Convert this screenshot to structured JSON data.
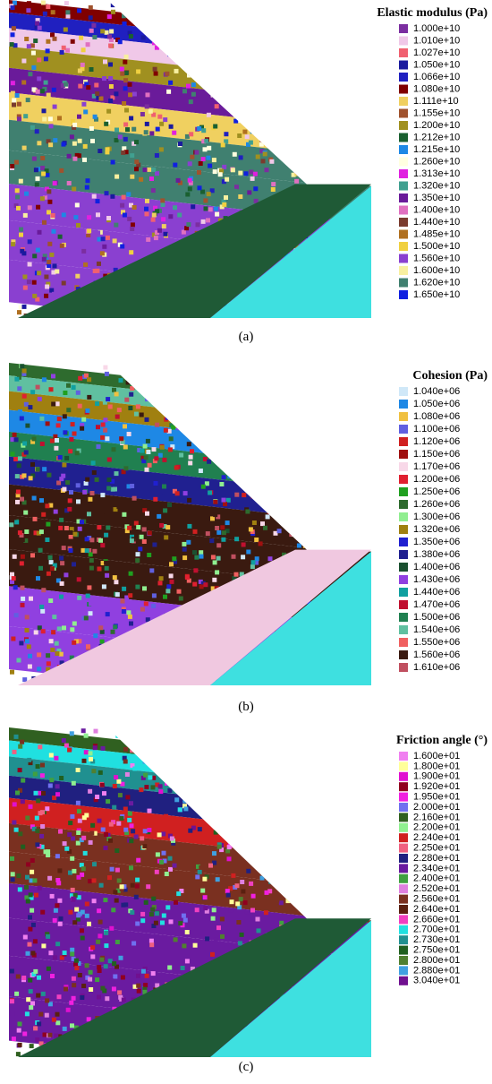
{
  "panels": [
    {
      "legend_title": "Elastic modulus (Pa)",
      "caption": "(a)",
      "base_colors": [
        "#1f5a36",
        "#3ee0e0"
      ],
      "legend": [
        {
          "label": "1.000e+10",
          "color": "#7b2ea0"
        },
        {
          "label": "1.010e+10",
          "color": "#f0c8e8"
        },
        {
          "label": "1.027e+10",
          "color": "#f06070"
        },
        {
          "label": "1.050e+10",
          "color": "#1a1a9e"
        },
        {
          "label": "1.066e+10",
          "color": "#2020c0"
        },
        {
          "label": "1.080e+10",
          "color": "#800000"
        },
        {
          "label": "1.111e+10",
          "color": "#f0d060"
        },
        {
          "label": "1.155e+10",
          "color": "#a0522d"
        },
        {
          "label": "1.200e+10",
          "color": "#a09020"
        },
        {
          "label": "1.212e+10",
          "color": "#1a6030"
        },
        {
          "label": "1.215e+10",
          "color": "#1e88e5"
        },
        {
          "label": "1.260e+10",
          "color": "#ffffe0"
        },
        {
          "label": "1.313e+10",
          "color": "#e020e0"
        },
        {
          "label": "1.320e+10",
          "color": "#40a090"
        },
        {
          "label": "1.350e+10",
          "color": "#6a1b9a"
        },
        {
          "label": "1.400e+10",
          "color": "#e070c0"
        },
        {
          "label": "1.440e+10",
          "color": "#7a3b2e"
        },
        {
          "label": "1.485e+10",
          "color": "#b07020"
        },
        {
          "label": "1.500e+10",
          "color": "#f0d040"
        },
        {
          "label": "1.560e+10",
          "color": "#8a40d0"
        },
        {
          "label": "1.600e+10",
          "color": "#f8f0a0"
        },
        {
          "label": "1.620e+10",
          "color": "#408070"
        },
        {
          "label": "1.650e+10",
          "color": "#1020e0"
        }
      ]
    },
    {
      "legend_title": "Cohesion (Pa)",
      "caption": "(b)",
      "base_colors": [
        "#f0c8e0",
        "#3ee0e0"
      ],
      "legend": [
        {
          "label": "1.040e+06",
          "color": "#d0e8f8"
        },
        {
          "label": "1.050e+06",
          "color": "#1e88e5"
        },
        {
          "label": "1.080e+06",
          "color": "#f0c040"
        },
        {
          "label": "1.100e+06",
          "color": "#6060e0"
        },
        {
          "label": "1.120e+06",
          "color": "#d02020"
        },
        {
          "label": "1.150e+06",
          "color": "#a01010"
        },
        {
          "label": "1.170e+06",
          "color": "#f8d8e8"
        },
        {
          "label": "1.200e+06",
          "color": "#e02030"
        },
        {
          "label": "1.250e+06",
          "color": "#20a020"
        },
        {
          "label": "1.260e+06",
          "color": "#2e6b2e"
        },
        {
          "label": "1.300e+06",
          "color": "#90ee90"
        },
        {
          "label": "1.320e+06",
          "color": "#a08010"
        },
        {
          "label": "1.350e+06",
          "color": "#2020d0"
        },
        {
          "label": "1.380e+06",
          "color": "#202090"
        },
        {
          "label": "1.400e+06",
          "color": "#1a5030"
        },
        {
          "label": "1.430e+06",
          "color": "#9040e0"
        },
        {
          "label": "1.440e+06",
          "color": "#10a0a0"
        },
        {
          "label": "1.470e+06",
          "color": "#c01030"
        },
        {
          "label": "1.500e+06",
          "color": "#208050"
        },
        {
          "label": "1.540e+06",
          "color": "#60c0a0"
        },
        {
          "label": "1.550e+06",
          "color": "#f06060"
        },
        {
          "label": "1.560e+06",
          "color": "#3a1a10"
        },
        {
          "label": "1.610e+06",
          "color": "#c05060"
        }
      ]
    },
    {
      "legend_title": "Friction angle (°)",
      "caption": "(c)",
      "base_colors": [
        "#1f5a36",
        "#3ee0e0"
      ],
      "legend": [
        {
          "label": "1.600e+01",
          "color": "#f080f0"
        },
        {
          "label": "1.800e+01",
          "color": "#ffff99"
        },
        {
          "label": "1.900e+01",
          "color": "#e010d0"
        },
        {
          "label": "1.920e+01",
          "color": "#900020"
        },
        {
          "label": "1.950e+01",
          "color": "#f020e0"
        },
        {
          "label": "2.000e+01",
          "color": "#7070f0"
        },
        {
          "label": "2.160e+01",
          "color": "#306020"
        },
        {
          "label": "2.200e+01",
          "color": "#90f090"
        },
        {
          "label": "2.240e+01",
          "color": "#d02020"
        },
        {
          "label": "2.250e+01",
          "color": "#f06080"
        },
        {
          "label": "2.280e+01",
          "color": "#202080"
        },
        {
          "label": "2.340e+01",
          "color": "#6a1ba0"
        },
        {
          "label": "2.400e+01",
          "color": "#40a040"
        },
        {
          "label": "2.520e+01",
          "color": "#e080e0"
        },
        {
          "label": "2.560e+01",
          "color": "#7a3020"
        },
        {
          "label": "2.640e+01",
          "color": "#5a2010"
        },
        {
          "label": "2.660e+01",
          "color": "#f040c0"
        },
        {
          "label": "2.700e+01",
          "color": "#20e0e0"
        },
        {
          "label": "2.730e+01",
          "color": "#209090"
        },
        {
          "label": "2.750e+01",
          "color": "#206020"
        },
        {
          "label": "2.800e+01",
          "color": "#508030"
        },
        {
          "label": "2.880e+01",
          "color": "#40a0e0"
        },
        {
          "label": "3.040e+01",
          "color": "#701090"
        }
      ]
    }
  ]
}
